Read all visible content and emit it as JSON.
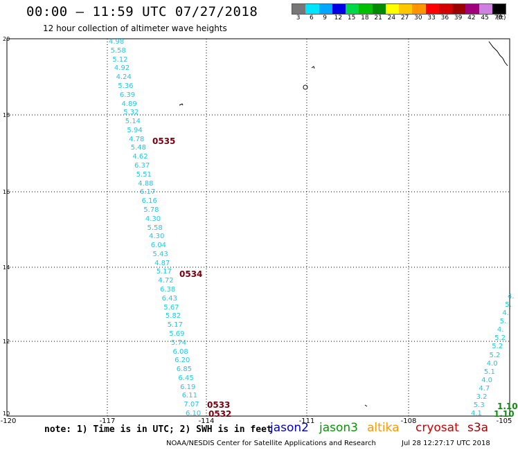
{
  "title": "00:00 – 11:59 UTC 07/27/2018",
  "subtitle": "12 hour collection of altimeter wave heights",
  "color_scale": {
    "labels": [
      "3",
      "6",
      "9",
      "12",
      "15",
      "18",
      "21",
      "24",
      "27",
      "30",
      "33",
      "36",
      "39",
      "42",
      "45",
      "70"
    ],
    "units": "(ft)",
    "colors": [
      "#777777",
      "#00e5ff",
      "#00a6ff",
      "#0000e6",
      "#00d84a",
      "#00c000",
      "#008a00",
      "#ffff00",
      "#ffc800",
      "#ff9600",
      "#ff0000",
      "#d20000",
      "#9a0000",
      "#a0007a",
      "#d080e0",
      "#000000"
    ]
  },
  "y_axis_labels": [
    "20",
    "18",
    "16",
    "14",
    "12",
    "10"
  ],
  "x_axis_labels": [
    "-120",
    "-117",
    "-114",
    "-111",
    "-108",
    "-105"
  ],
  "track_values": [
    "4.98",
    "5.58",
    "5.12",
    "4.92",
    "4.24",
    "5.36",
    "6.39",
    "4.89",
    "5.32",
    "5.14",
    "5.94",
    "4.78",
    "5.48",
    "4.62",
    "6.37",
    "5.51",
    "4.88",
    "6.17",
    "6.16",
    "5.78",
    "4.30",
    "5.58",
    "4.30",
    "6.04",
    "5.43",
    "4.87",
    "5.17",
    "4.72",
    "6.38",
    "6.43",
    "5.67",
    "5.82",
    "5.17",
    "5.69",
    "5.74",
    "6.08",
    "6.20",
    "6.85",
    "6.45",
    "6.19",
    "6.11",
    "7.07",
    "6.10"
  ],
  "pass_times": [
    "0535",
    "0534",
    "0533",
    "0532"
  ],
  "edge_track_values": [
    "4.",
    "5.",
    "4.",
    "5.",
    "4.",
    "5.2",
    "5.2",
    "5.2",
    "4.0",
    "5.1",
    "4.0",
    "4.7",
    "3.2",
    "5.3",
    "4.1"
  ],
  "edge_green_values": [
    "1.10",
    "1.10"
  ],
  "note": "note: 1) Time is in UTC; 2) SWH is in feet",
  "satellites": [
    {
      "name": "jason2",
      "color": "#0000cc"
    },
    {
      "name": "jason3",
      "color": "#009900"
    },
    {
      "name": "altika",
      "color": "#ff9900"
    },
    {
      "name": "cryosat",
      "color": "#cc0000"
    },
    {
      "name": "s3a",
      "color": "#aa0000"
    }
  ],
  "credit": "NOAA/NESDIS Center for Satellite Applications and Research",
  "generated": "Jul 28 12:27:17 UTC 2018"
}
